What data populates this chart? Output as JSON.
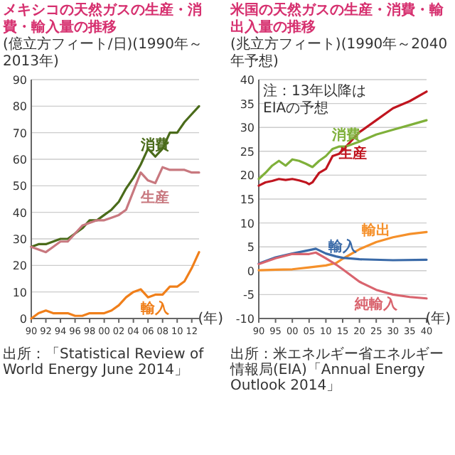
{
  "chart_data": [
    {
      "type": "line",
      "title": "メキシコの天然ガスの生産・消費・輸入量の推移",
      "ylabel": "(億立方フィート/日)",
      "subtitle": "(1990年～2013年)",
      "xlabel": "(年)",
      "annotations": [
        "出所：「Statistical Review of World Energy June 2014」"
      ],
      "xlim": [
        1990,
        2013
      ],
      "xticks": [
        {
          "value": 1990,
          "label": "90"
        },
        {
          "value": 1992,
          "label": "92"
        },
        {
          "value": 1994,
          "label": "94"
        },
        {
          "value": 1996,
          "label": "96"
        },
        {
          "value": 1998,
          "label": "98"
        },
        {
          "value": 2000,
          "label": "00"
        },
        {
          "value": 2002,
          "label": "02"
        },
        {
          "value": 2004,
          "label": "04"
        },
        {
          "value": 2006,
          "label": "06"
        },
        {
          "value": 2008,
          "label": "08"
        },
        {
          "value": 2010,
          "label": "10"
        },
        {
          "value": 2012,
          "label": "12"
        }
      ],
      "ylim": [
        0,
        90
      ],
      "yticks": [
        0,
        10,
        20,
        30,
        40,
        50,
        60,
        70,
        80,
        90
      ],
      "grid": "y",
      "series": [
        {
          "name": "消費",
          "color": "#4a6b1a",
          "x": [
            1990,
            1991,
            1992,
            1993,
            1994,
            1995,
            1996,
            1997,
            1998,
            1999,
            2000,
            2001,
            2002,
            2003,
            2004,
            2005,
            2006,
            2007,
            2008,
            2009,
            2010,
            2011,
            2012,
            2013
          ],
          "values": [
            27,
            28,
            28,
            29,
            30,
            30,
            32,
            34,
            37,
            37,
            39,
            41,
            44,
            49,
            53,
            58,
            64,
            61,
            64,
            70,
            70,
            74,
            77,
            80
          ]
        },
        {
          "name": "生産",
          "color": "#c8787f",
          "x": [
            1990,
            1991,
            1992,
            1993,
            1994,
            1995,
            1996,
            1997,
            1998,
            1999,
            2000,
            2001,
            2002,
            2003,
            2004,
            2005,
            2006,
            2007,
            2008,
            2009,
            2010,
            2011,
            2012,
            2013
          ],
          "values": [
            27,
            26,
            25,
            27,
            29,
            29,
            32,
            35,
            36,
            37,
            37,
            38,
            39,
            41,
            48,
            55,
            52,
            51,
            57,
            56,
            56,
            56,
            55,
            55
          ]
        },
        {
          "name": "輸入",
          "color": "#f07f1a",
          "x": [
            1990,
            1991,
            1992,
            1993,
            1994,
            1995,
            1996,
            1997,
            1998,
            1999,
            2000,
            2001,
            2002,
            2003,
            2004,
            2005,
            2006,
            2007,
            2008,
            2009,
            2010,
            2011,
            2012,
            2013
          ],
          "values": [
            0,
            2,
            3,
            2,
            2,
            2,
            1,
            1,
            2,
            2,
            2,
            3,
            5,
            8,
            10,
            11,
            8,
            9,
            9,
            12,
            12,
            14,
            19,
            25
          ]
        }
      ]
    },
    {
      "type": "line",
      "title": "米国の天然ガスの生産・消費・輸出入量の推移",
      "ylabel": "(兆立方フィート)",
      "subtitle": "(1990年～2040年予想)",
      "xlabel": "(年)",
      "annotations": [
        "注：13年以降はEIAの予想",
        "出所：米エネルギー省エネルギー情報局(EIA)「Annual Energy Outlook 2014」"
      ],
      "xlim": [
        1990,
        2040
      ],
      "xticks": [
        {
          "value": 1990,
          "label": "90"
        },
        {
          "value": 1995,
          "label": "95"
        },
        {
          "value": 2000,
          "label": "00"
        },
        {
          "value": 2005,
          "label": "05"
        },
        {
          "value": 2010,
          "label": "10"
        },
        {
          "value": 2015,
          "label": "15"
        },
        {
          "value": 2020,
          "label": "20"
        },
        {
          "value": 2025,
          "label": "25"
        },
        {
          "value": 2030,
          "label": "30"
        },
        {
          "value": 2035,
          "label": "35"
        },
        {
          "value": 2040,
          "label": "40"
        }
      ],
      "ylim": [
        -10,
        40
      ],
      "yticks": [
        -10,
        -5,
        0,
        5,
        10,
        15,
        20,
        25,
        30,
        35,
        40
      ],
      "grid": "y",
      "series": [
        {
          "name": "生産",
          "color": "#c0151f",
          "x": [
            1990,
            1992,
            1994,
            1996,
            1998,
            2000,
            2002,
            2004,
            2005,
            2006,
            2008,
            2010,
            2012,
            2014,
            2016,
            2018,
            2020,
            2025,
            2030,
            2035,
            2040
          ],
          "values": [
            17.8,
            18.5,
            18.8,
            19.2,
            19,
            19.2,
            18.9,
            18.5,
            18.1,
            18.5,
            20.5,
            21.3,
            24,
            24.5,
            26,
            27.5,
            29,
            31.5,
            34,
            35.5,
            37.5
          ]
        },
        {
          "name": "消費",
          "color": "#7fb03a",
          "x": [
            1990,
            1992,
            1994,
            1996,
            1998,
            2000,
            2002,
            2004,
            2006,
            2008,
            2010,
            2012,
            2014,
            2016,
            2020,
            2025,
            2030,
            2035,
            2040
          ],
          "values": [
            19.2,
            20.5,
            22,
            23,
            22,
            23.3,
            23,
            22.4,
            21.7,
            23,
            24,
            25.5,
            26,
            26,
            27,
            28.5,
            29.5,
            30.5,
            31.5
          ]
        },
        {
          "name": "輸出",
          "color": "#f5902a",
          "x": [
            1990,
            1995,
            2000,
            2005,
            2010,
            2013,
            2015,
            2020,
            2025,
            2030,
            2035,
            2040
          ],
          "values": [
            0.1,
            0.2,
            0.3,
            0.7,
            1.1,
            1.6,
            2.5,
            4.5,
            6,
            7,
            7.7,
            8.1
          ]
        },
        {
          "name": "輸入",
          "color": "#3a6aa8",
          "x": [
            1990,
            1995,
            2000,
            2005,
            2007,
            2010,
            2013,
            2015,
            2020,
            2030,
            2040
          ],
          "values": [
            1.5,
            2.8,
            3.6,
            4.3,
            4.6,
            3.6,
            3,
            2.7,
            2.4,
            2.2,
            2.3
          ]
        },
        {
          "name": "純輸入",
          "color": "#d9646e",
          "x": [
            1990,
            1995,
            2000,
            2005,
            2007,
            2010,
            2013,
            2015,
            2020,
            2025,
            2030,
            2035,
            2040
          ],
          "values": [
            1.4,
            2.6,
            3.5,
            3.5,
            3.8,
            2.6,
            1.3,
            0.3,
            -2.3,
            -4,
            -5,
            -5.5,
            -5.8
          ]
        }
      ]
    }
  ]
}
